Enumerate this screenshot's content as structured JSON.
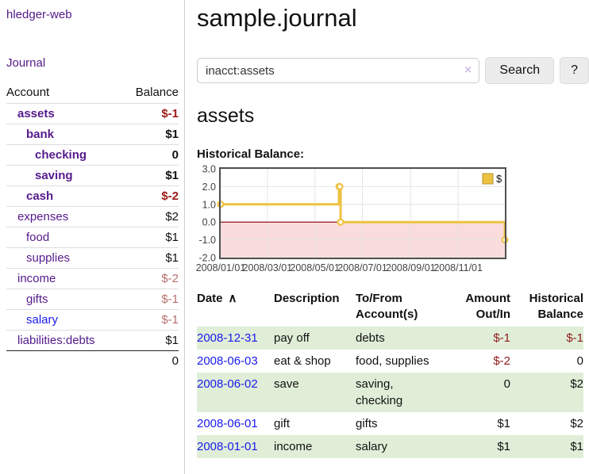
{
  "sidebar": {
    "brand": "hledger-web",
    "nav": {
      "journal": "Journal"
    },
    "accounts_table": {
      "account_header": "Account",
      "balance_header": "Balance",
      "rows": [
        {
          "account": "assets",
          "depth": 0,
          "bold": true,
          "balance": "$-1",
          "negative": "strong"
        },
        {
          "account": "bank",
          "depth": 1,
          "bold": true,
          "balance": "$1"
        },
        {
          "account": "checking",
          "depth": 2,
          "bold": true,
          "balance": "0"
        },
        {
          "account": "saving",
          "depth": 2,
          "bold": true,
          "balance": "$1"
        },
        {
          "account": "cash",
          "depth": 1,
          "bold": true,
          "balance": "$-2",
          "negative": "strong"
        },
        {
          "account": "expenses",
          "depth": 0,
          "bold": false,
          "balance": "$2"
        },
        {
          "account": "food",
          "depth": 1,
          "bold": false,
          "balance": "$1"
        },
        {
          "account": "supplies",
          "depth": 1,
          "bold": false,
          "balance": "$1"
        },
        {
          "account": "income",
          "depth": 0,
          "bold": false,
          "balance": "$-2",
          "negative": "muted"
        },
        {
          "account": "gifts",
          "depth": 1,
          "bold": false,
          "balance": "$-1",
          "negative": "muted"
        },
        {
          "account": "salary",
          "depth": 1,
          "bold": false,
          "balance": "$-1",
          "negative": "muted",
          "link_style": "blue"
        },
        {
          "account": "liabilities:debts",
          "depth": 0,
          "bold": false,
          "balance": "$1"
        }
      ],
      "total": "0"
    }
  },
  "main": {
    "title": "sample.journal",
    "search": {
      "query": "inacct:assets",
      "clear_icon": "×",
      "search_button": "Search",
      "help_button": "?"
    },
    "account_heading": "assets",
    "chart_title": "Historical Balance:"
  },
  "chart_data": {
    "type": "line",
    "step": true,
    "title": "Historical Balance",
    "series": [
      {
        "name": "$",
        "color": "#edc240",
        "points": [
          [
            "2008-01-01",
            1
          ],
          [
            "2008-06-01",
            2
          ],
          [
            "2008-06-02",
            2
          ],
          [
            "2008-06-03",
            0
          ],
          [
            "2008-12-31",
            -1
          ]
        ]
      }
    ],
    "x_range": [
      "2008-01-01",
      "2008-12-31"
    ],
    "y_range": [
      -2,
      3
    ],
    "y_ticks": [
      "3.0",
      "2.0",
      "1.0",
      "0.0",
      "-1.0",
      "-2.0"
    ],
    "y_tick_values": [
      3,
      2,
      1,
      0,
      -1,
      -2
    ],
    "x_ticks": [
      {
        "label": "2008/01/01",
        "date": "2008-01-01"
      },
      {
        "label": "2008/03/01",
        "date": "2008-03-01"
      },
      {
        "label": "2008/05/01",
        "date": "2008-05-01"
      },
      {
        "label": "2008/07/01",
        "date": "2008-07-01"
      },
      {
        "label": "2008/09/01",
        "date": "2008-09-01"
      },
      {
        "label": "2008/11/01",
        "date": "2008-11-01"
      }
    ],
    "grid": true,
    "legend_position": "top-right",
    "legend_label": "$",
    "colors": {
      "negative_band": "#fbdcdc",
      "zero_line": "#8b0000",
      "grid_line": "#e4e4e4",
      "border": "#4f4f4f",
      "marker_fill": "#ffffff"
    }
  },
  "register": {
    "headers": {
      "date": "Date",
      "sort_icon": "∧",
      "description": "Description",
      "accounts": "To/From Account(s)",
      "amount": "Amount Out/In",
      "balance": "Historical Balance"
    },
    "rows": [
      {
        "date": "2008-12-31",
        "description": "pay off",
        "accounts": "debts",
        "amount": "$-1",
        "amount_negative": true,
        "balance": "$-1",
        "balance_negative": true,
        "shaded": true
      },
      {
        "date": "2008-06-03",
        "description": "eat & shop",
        "accounts": "food, supplies",
        "amount": "$-2",
        "amount_negative": true,
        "balance": "0",
        "balance_negative": false,
        "shaded": false
      },
      {
        "date": "2008-06-02",
        "description": "save",
        "accounts": "saving, checking",
        "amount": "0",
        "amount_negative": false,
        "balance": "$2",
        "balance_negative": false,
        "shaded": true
      },
      {
        "date": "2008-06-01",
        "description": "gift",
        "accounts": "gifts",
        "amount": "$1",
        "amount_negative": false,
        "balance": "$2",
        "balance_negative": false,
        "shaded": false
      },
      {
        "date": "2008-01-01",
        "description": "income",
        "accounts": "salary",
        "amount": "$1",
        "amount_negative": false,
        "balance": "$1",
        "balance_negative": false,
        "shaded": true
      }
    ]
  },
  "colors": {
    "purple_link": "#551a8b",
    "blue_link": "#1a1aee",
    "negative_strong": "#9e1a1a",
    "negative_muted": "#b86f6f",
    "shaded_row": "#e0eed8"
  }
}
